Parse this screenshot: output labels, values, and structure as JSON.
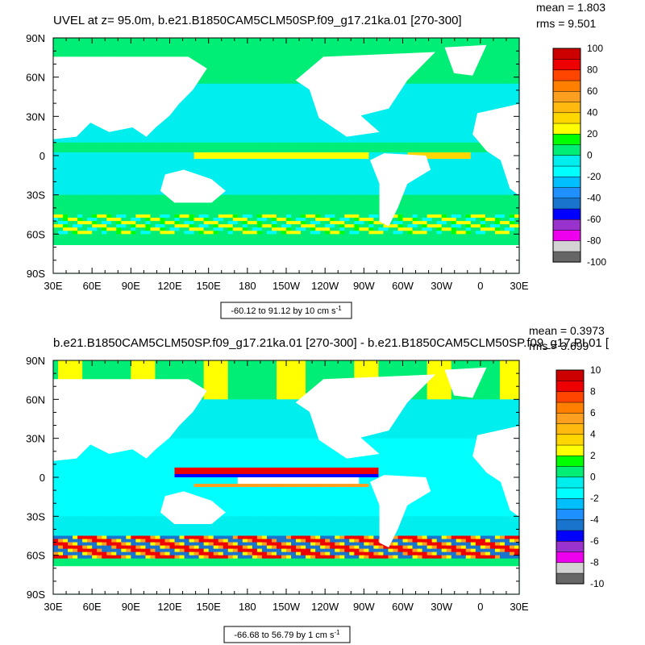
{
  "panels": [
    {
      "title": "UVEL at z=  95.0m, b.e21.B1850CAM5CLM50SP.f09_g17.21ka.01 [270-300]",
      "mean_label": "mean = 1.803",
      "rms_label": "rms = 9.501",
      "range_label": "-60.12 to 91.12 by 10 cm s",
      "range_unit_sup": "-1",
      "colorbar_labels": [
        "100",
        "80",
        "60",
        "40",
        "20",
        "0",
        "-20",
        "-40",
        "-60",
        "-80",
        "-100"
      ]
    },
    {
      "title": "b.e21.B1850CAM5CLM50SP.f09_g17.21ka.01 [270-300] - b.e21.B1850CAM5CLM50SP.f09_g17.PI.01 [",
      "mean_label": "mean = 0.3973",
      "rms_label": "rms = 3.699",
      "range_label": "-66.68 to 56.79 by 1 cm s",
      "range_unit_sup": "-1",
      "colorbar_labels": [
        "10",
        "8",
        "6",
        "4",
        "2",
        "0",
        "-2",
        "-4",
        "-6",
        "-8",
        "-10"
      ]
    }
  ],
  "lat_labels": [
    "90N",
    "60N",
    "30N",
    "0",
    "30S",
    "60S",
    "90S"
  ],
  "lon_labels": [
    "30E",
    "60E",
    "90E",
    "120E",
    "150E",
    "180",
    "150W",
    "120W",
    "90W",
    "60W",
    "30W",
    "0",
    "30E"
  ],
  "palette": [
    "#ffffff",
    "#666666",
    "#d3d3d3",
    "#ee00ee",
    "#9a32cd",
    "#0000ff",
    "#1874cd",
    "#1e90ff",
    "#00bfff",
    "#00ffff",
    "#00eeee",
    "#00ee76",
    "#00ff00",
    "#ffff00",
    "#ffd700",
    "#ffb90f",
    "#ff9f1f",
    "#ff7f00",
    "#ff4500",
    "#ee0000",
    "#cd0000"
  ],
  "land_color": "#ffffff",
  "ocean_color": "#00ee76"
}
